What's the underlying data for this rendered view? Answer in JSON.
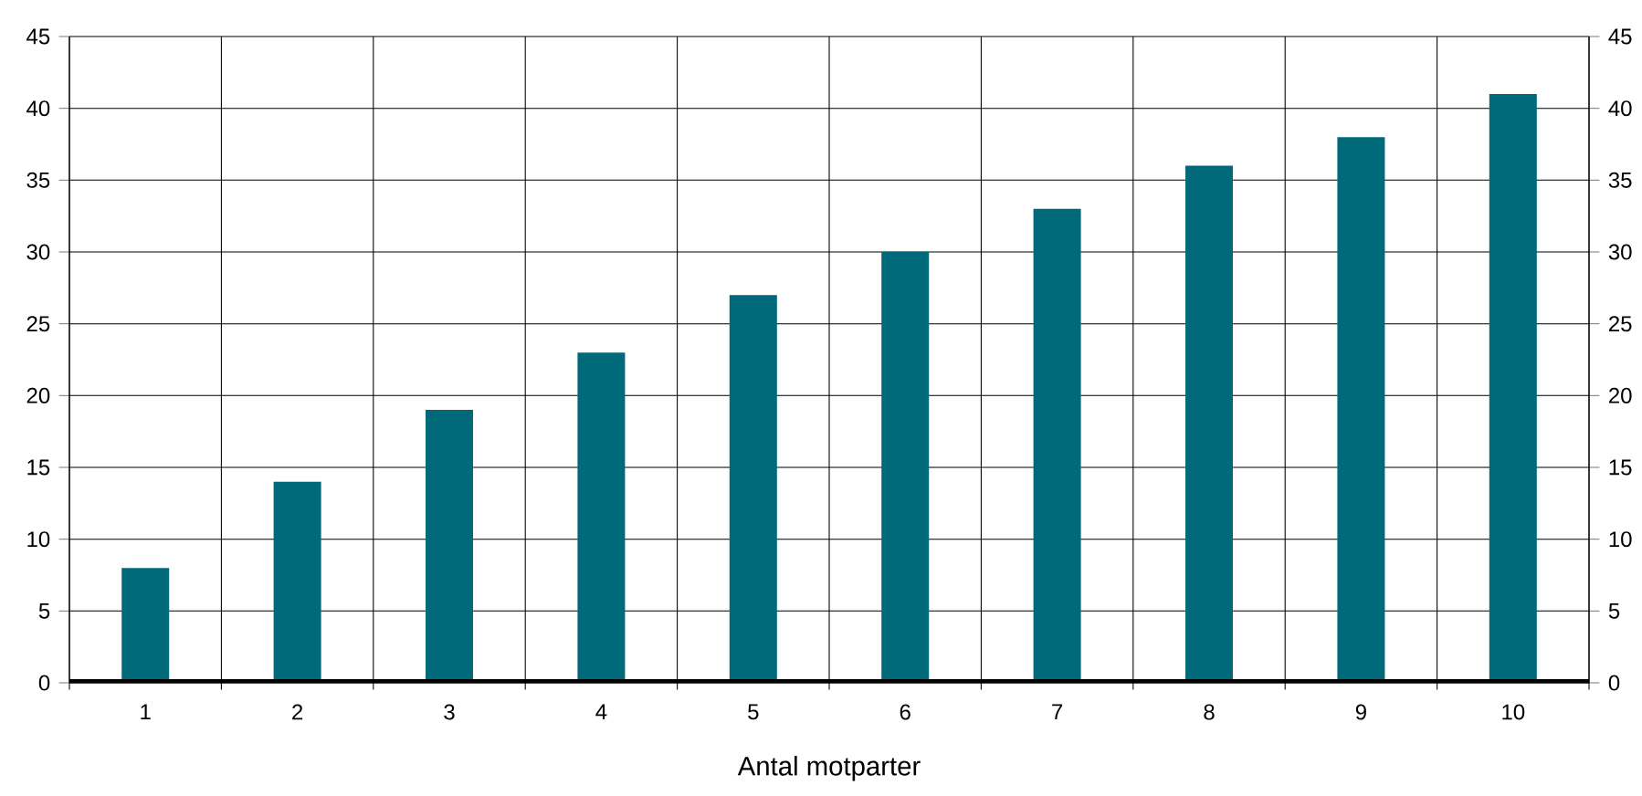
{
  "chart_data": {
    "type": "bar",
    "xlabel": "Antal motparter",
    "categories": [
      "1",
      "2",
      "3",
      "4",
      "5",
      "6",
      "7",
      "8",
      "9",
      "10"
    ],
    "values": [
      8,
      14,
      19,
      23,
      27,
      30,
      33,
      36,
      38,
      41
    ],
    "color": "#006a7a",
    "ylim": [
      0,
      45
    ],
    "yticks": [
      0,
      5,
      10,
      15,
      20,
      25,
      30,
      35,
      40,
      45
    ],
    "y2lim": [
      0,
      45
    ],
    "y2ticks": [
      0,
      5,
      10,
      15,
      20,
      25,
      30,
      35,
      40,
      45
    ],
    "grid": true
  }
}
